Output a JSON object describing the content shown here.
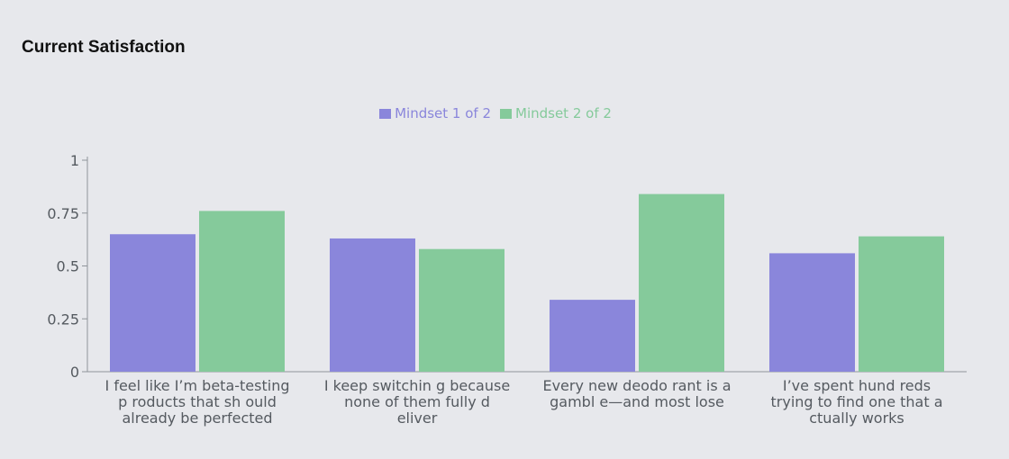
{
  "header": {
    "title": "Current Satisfaction"
  },
  "colors": {
    "series1": "#8a86db",
    "series2": "#85ca9b",
    "axis": "#8f949a",
    "text": "#555a60"
  },
  "chart_data": {
    "type": "bar",
    "title": "Current Satisfaction",
    "xlabel": "",
    "ylabel": "",
    "ylim": [
      0,
      1
    ],
    "yticks": [
      0,
      0.25,
      0.5,
      0.75,
      1
    ],
    "ytick_labels": [
      "0",
      "0.25",
      "0.5",
      "0.75",
      "1"
    ],
    "grid": false,
    "legend": "top-center",
    "categories": [
      "I feel like I’m beta-testing p roducts that sh ould already be perfected",
      "I keep switchin g because none of them fully d eliver",
      "Every new deodo rant is a gambl e—and most lose",
      "I’ve spent hund reds trying to find one that a ctually works"
    ],
    "category_lines": [
      [
        "I feel like I’m beta-testing",
        "p roducts that sh ould",
        "already be perfected"
      ],
      [
        "I keep switchin g because",
        "none of them fully d",
        "eliver"
      ],
      [
        "Every new deodo rant is a",
        "gambl e—and most lose"
      ],
      [
        "I’ve spent hund reds",
        "trying to find one that a",
        "ctually works"
      ]
    ],
    "series": [
      {
        "name": "Mindset 1 of 2",
        "values": [
          0.65,
          0.63,
          0.34,
          0.56
        ]
      },
      {
        "name": "Mindset 2 of 2",
        "values": [
          0.76,
          0.58,
          0.84,
          0.64
        ]
      }
    ]
  }
}
